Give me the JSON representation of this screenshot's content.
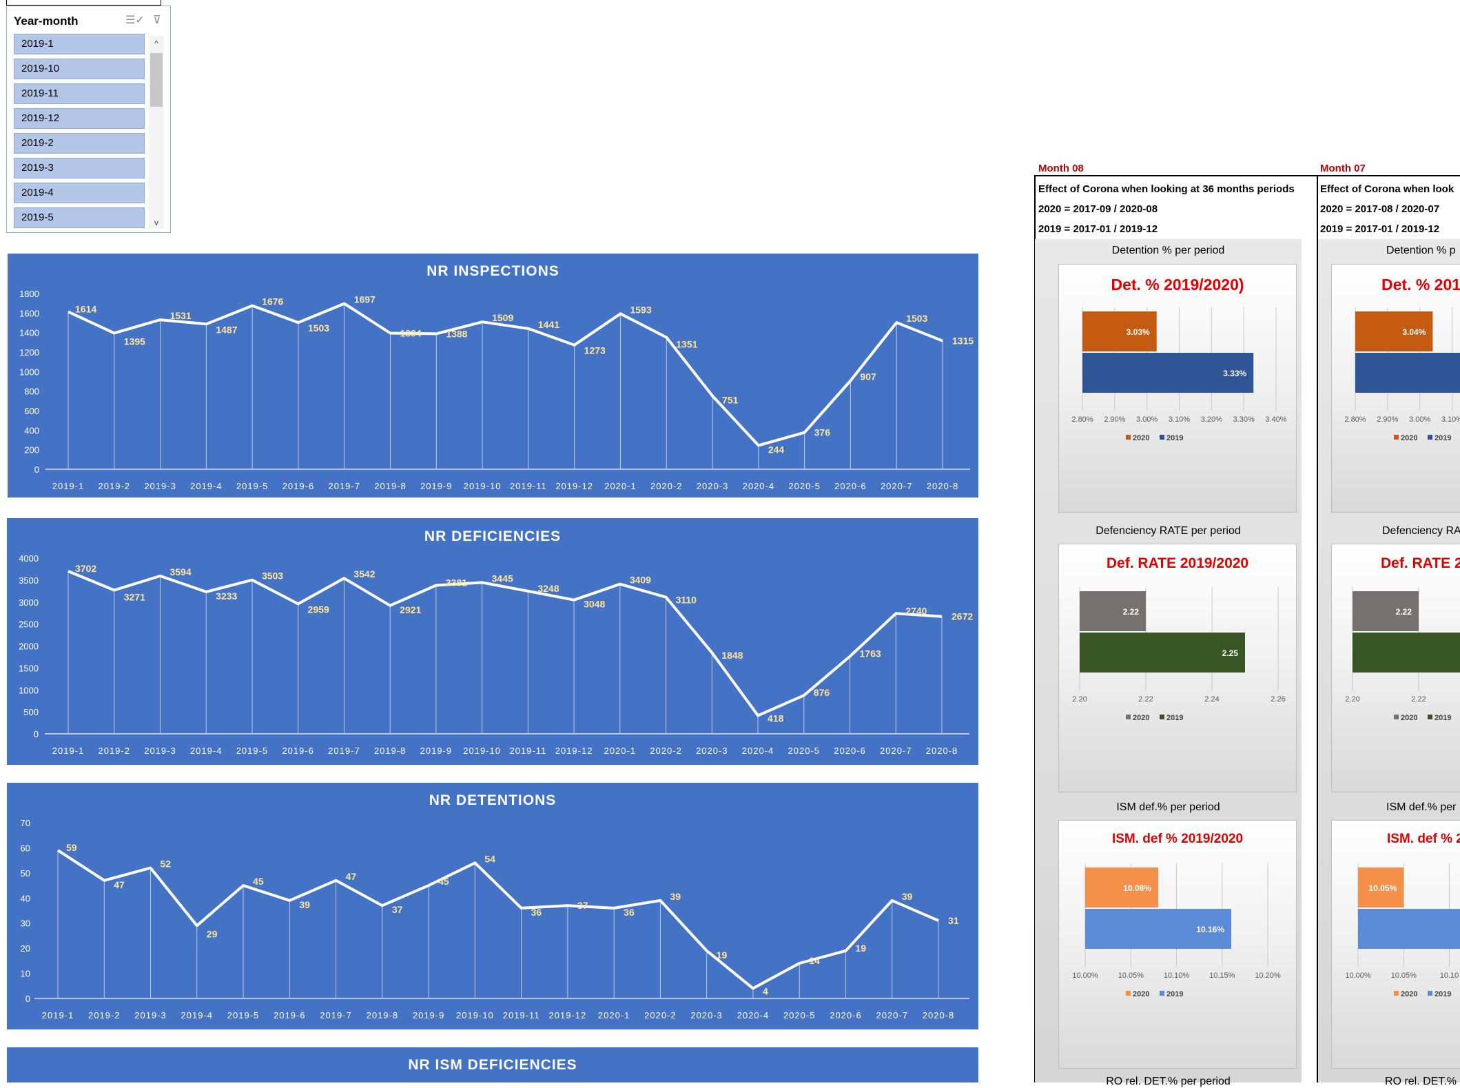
{
  "slicer": {
    "title": "Year-month",
    "items": [
      "2019-1",
      "2019-10",
      "2019-11",
      "2019-12",
      "2019-2",
      "2019-3",
      "2019-4",
      "2019-5"
    ],
    "multi_select_icon": "multi-select-icon",
    "clear_filter_icon": "clear-filter-icon"
  },
  "categories": [
    "2019-1",
    "2019-2",
    "2019-3",
    "2019-4",
    "2019-5",
    "2019-6",
    "2019-7",
    "2019-8",
    "2019-9",
    "2019-10",
    "2019-11",
    "2019-12",
    "2020-1",
    "2020-2",
    "2020-3",
    "2020-4",
    "2020-5",
    "2020-6",
    "2020-7",
    "2020-8"
  ],
  "chart_data": [
    {
      "type": "line",
      "title": "NR INSPECTIONS",
      "ylim": [
        0,
        1800
      ],
      "yticks": [
        0,
        200,
        400,
        600,
        800,
        1000,
        1200,
        1400,
        1600,
        1800
      ],
      "series": [
        {
          "values": [
            1614,
            1395,
            1531,
            1487,
            1676,
            1503,
            1697,
            1394,
            1388,
            1509,
            1441,
            1273,
            1593,
            1351,
            751,
            244,
            376,
            907,
            1503,
            1315
          ]
        }
      ]
    },
    {
      "type": "line",
      "title": "NR DEFICIENCIES",
      "ylim": [
        0,
        4000
      ],
      "yticks": [
        0,
        500,
        1000,
        1500,
        2000,
        2500,
        3000,
        3500,
        4000
      ],
      "series": [
        {
          "values": [
            3702,
            3271,
            3594,
            3233,
            3503,
            2959,
            3542,
            2921,
            3381,
            3445,
            3248,
            3048,
            3409,
            3110,
            1848,
            418,
            876,
            1763,
            2740,
            2672
          ]
        }
      ]
    },
    {
      "type": "line",
      "title": "NR DETENTIONS",
      "ylim": [
        0,
        70
      ],
      "yticks": [
        0,
        10,
        20,
        30,
        40,
        50,
        60,
        70
      ],
      "series": [
        {
          "values": [
            59,
            47,
            52,
            29,
            45,
            39,
            47,
            37,
            45,
            54,
            36,
            37,
            36,
            39,
            19,
            4,
            14,
            19,
            39,
            31
          ]
        }
      ]
    },
    {
      "type": "line",
      "title": "NR ISM DEFICIENCIES"
    },
    {
      "type": "bar",
      "title": "Det. % 2019/2020)",
      "section": "Detention % per period",
      "month": "Month 08",
      "series": [
        {
          "name": "2020",
          "values": [
            3.03
          ]
        },
        {
          "name": "2019",
          "values": [
            3.33
          ]
        }
      ],
      "value_labels": [
        "3.03%",
        "3.33%"
      ],
      "xlim": [
        2.8,
        3.4
      ],
      "xtick_labels": [
        "2.80%",
        "2.90%",
        "3.00%",
        "3.10%",
        "3.20%",
        "3.30%",
        "3.40%"
      ],
      "legend": "bottom"
    },
    {
      "type": "bar",
      "title": "Def. RATE 2019/2020",
      "section": "Defenciency RATE per period",
      "month": "Month 08",
      "series": [
        {
          "name": "2020",
          "values": [
            2.22
          ]
        },
        {
          "name": "2019",
          "values": [
            2.25
          ]
        }
      ],
      "value_labels": [
        "2.22",
        "2.25"
      ],
      "xlim": [
        2.2,
        2.26
      ],
      "xtick_labels": [
        "2.20",
        "2.22",
        "2.24",
        "2.26"
      ],
      "legend": "bottom"
    },
    {
      "type": "bar",
      "title": "ISM. def % 2019/2020",
      "section": "ISM def.% per period",
      "month": "Month 08",
      "series": [
        {
          "name": "2020",
          "values": [
            10.08
          ]
        },
        {
          "name": "2019",
          "values": [
            10.16
          ]
        }
      ],
      "value_labels": [
        "10.08%",
        "10.16%"
      ],
      "xlim": [
        10.0,
        10.2
      ],
      "xtick_labels": [
        "10.00%",
        "10.05%",
        "10.10%",
        "10.15%",
        "10.20%"
      ],
      "legend": "bottom"
    },
    {
      "type": "bar",
      "title": "Det. % 201",
      "section": "Detention % p",
      "month": "Month 07",
      "series": [
        {
          "name": "2020",
          "values": [
            3.04
          ]
        },
        {
          "name": "2019",
          "values": [
            null
          ]
        }
      ],
      "value_labels": [
        "3.04%"
      ],
      "xlim": [
        2.8,
        3.4
      ],
      "xtick_labels": [
        "2.80%",
        "2.90%",
        "3.00%",
        "3.10%"
      ],
      "legend": "bottom"
    },
    {
      "type": "bar",
      "title": "Def. RATE 20",
      "section": "Defenciency RA",
      "month": "Month 07",
      "series": [
        {
          "name": "2020",
          "values": [
            2.22
          ]
        },
        {
          "name": "2019",
          "values": [
            null
          ]
        }
      ],
      "value_labels": [
        "2.22"
      ],
      "xlim": [
        2.2,
        2.26
      ],
      "xtick_labels": [
        "2.20",
        "2.22"
      ],
      "legend": "bottom"
    },
    {
      "type": "bar",
      "title": "ISM. def % 2",
      "section": "ISM def.% per",
      "month": "Month 07",
      "series": [
        {
          "name": "2020",
          "values": [
            10.05
          ]
        },
        {
          "name": "2019",
          "values": [
            null
          ]
        }
      ],
      "value_labels": [
        "10.05%"
      ],
      "xlim": [
        10.0,
        10.2
      ],
      "xtick_labels": [
        "10.00%",
        "10.05%",
        "10.10"
      ],
      "legend": "bottom"
    }
  ],
  "month08": {
    "label": "Month 08",
    "line1": "Effect of Corona when looking at 36 months periods",
    "line2": "2020 = 2017-09 / 2020-08",
    "line3": "2019 = 2017-01 / 2019-12",
    "sec1": "Detention % per period",
    "sec2": "Defenciency RATE per period",
    "sec3": "ISM def.% per period",
    "sec4": "RO rel. DET.% per period"
  },
  "month07": {
    "label": "Month 07",
    "line1": "Effect of Corona when look",
    "line2": "2020 = 2017-08 / 2020-07",
    "line3": "2019 = 2017-01 / 2019-12",
    "sec1": "Detention % p",
    "sec2": "Defenciency RA",
    "sec3": "ISM def.% per",
    "sec4": "RO rel. DET.% pe"
  },
  "legend_labels": [
    "2020",
    "2019"
  ],
  "colors": {
    "panel_bg": "#4472c4",
    "line": "#ffffff",
    "point_label": "#ffe699",
    "mini_title": "#e00000",
    "month_label": "#c00000",
    "det_2020": "#c55a11",
    "det_2019": "#2f5597",
    "def_2020": "#767171",
    "def_2019": "#375623",
    "ism_2020": "#f4904a",
    "ism_2019": "#5b8ad7"
  }
}
